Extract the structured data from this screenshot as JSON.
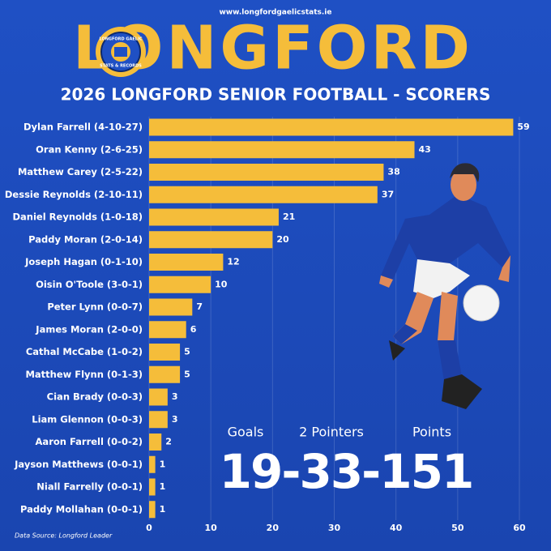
{
  "header": {
    "url": "www.longfordgaelicstats.ie",
    "title": "LONGFORD",
    "logo_top": "LONGFORD GAELIC",
    "logo_bottom": "STATS & RECORDS",
    "subtitle": "2026 LONGFORD SENIOR FOOTBALL - SCORERS"
  },
  "chart_data": {
    "type": "hbar",
    "categories": [
      "Dylan Farrell (4-10-27)",
      "Oran Kenny (2-6-25)",
      "Matthew Carey (2-5-22)",
      "Dessie Reynolds (2-10-11)",
      "Daniel Reynolds (1-0-18)",
      "Paddy Moran (2-0-14)",
      "Joseph Hagan (0-1-10)",
      "Oisin O'Toole (3-0-1)",
      "Peter Lynn (0-0-7)",
      "James Moran (2-0-0)",
      "Cathal McCabe (1-0-2)",
      "Matthew Flynn (0-1-3)",
      "Cian Brady (0-0-3)",
      "Liam Glennon (0-0-3)",
      "Aaron Farrell (0-0-2)",
      "Jayson Matthews (0-0-1)",
      "Niall Farrelly (0-0-1)",
      "Paddy Mollahan (0-0-1)"
    ],
    "values": [
      59,
      43,
      38,
      37,
      21,
      20,
      12,
      10,
      7,
      6,
      5,
      5,
      3,
      3,
      2,
      1,
      1,
      1
    ],
    "color": "#f5bd3a",
    "xlim": [
      0,
      60
    ],
    "xticks": [
      0,
      10,
      20,
      30,
      40,
      50,
      60
    ],
    "grid": true
  },
  "totals": {
    "labels": [
      "Goals",
      "2 Pointers",
      "Points"
    ],
    "score": "19-33-151"
  },
  "source": "Data Source: Longford Leader"
}
